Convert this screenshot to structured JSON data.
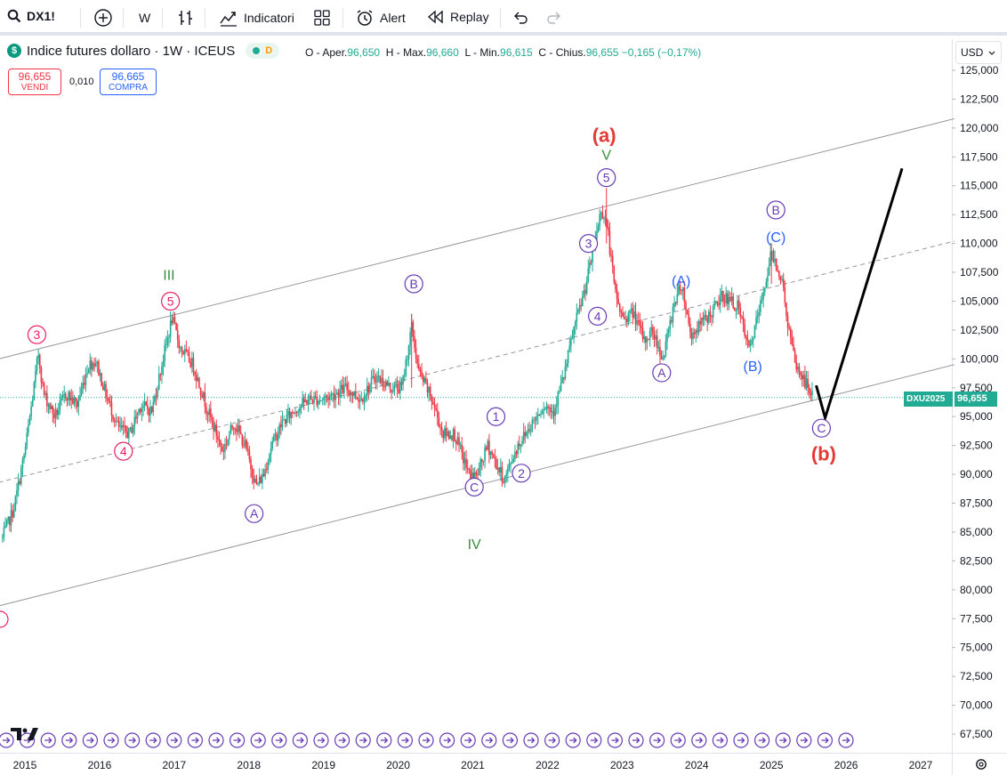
{
  "toolbar": {
    "symbol": "DX1!",
    "interval": "W",
    "indicators_label": "Indicatori",
    "alert_label": "Alert",
    "replay_label": "Replay"
  },
  "legend": {
    "title": "Indice futures dollaro · 1W · ICEUS",
    "badge": "D",
    "open_label": "O - Aper.",
    "open": "96,650",
    "high_label": "H - Max.",
    "high": "96,660",
    "low_label": "L - Min.",
    "low": "96,615",
    "close_label": "C - Chius.",
    "close": "96,655",
    "change": "−0,165 (−0,17%)"
  },
  "trade": {
    "sell_price": "96,655",
    "sell_label": "VENDI",
    "spread": "0,010",
    "buy_price": "96,665",
    "buy_label": "COMPRA"
  },
  "currency": "USD",
  "price_tag": {
    "symbol": "DXU2025",
    "price": "96,655"
  },
  "colors": {
    "up": "#22ab94",
    "down": "#f23645",
    "pink": "#e91e63",
    "purple": "#673ab7",
    "blue": "#2962ff",
    "green": "#388e3c",
    "red": "#e53935"
  },
  "chart_data": {
    "type": "candlestick",
    "timeframe": "1W",
    "y_ticks": [
      "125,000",
      "122,500",
      "120,000",
      "117,500",
      "115,000",
      "112,500",
      "110,000",
      "107,500",
      "105,000",
      "102,500",
      "100,000",
      "97,500",
      "95,000",
      "92,500",
      "90,000",
      "87,500",
      "85,000",
      "82,500",
      "80,000",
      "77,500",
      "75,000",
      "72,500",
      "70,000",
      "67,500"
    ],
    "x_ticks": [
      "2015",
      "2016",
      "2017",
      "2018",
      "2019",
      "2020",
      "2021",
      "2022",
      "2023",
      "2024",
      "2025",
      "2026",
      "2027"
    ],
    "ylim": [
      66,
      126
    ],
    "price_path": [
      [
        2014.7,
        84.5
      ],
      [
        2014.85,
        87
      ],
      [
        2015.0,
        92
      ],
      [
        2015.1,
        96.5
      ],
      [
        2015.18,
        100.5
      ],
      [
        2015.25,
        97
      ],
      [
        2015.4,
        95
      ],
      [
        2015.55,
        97
      ],
      [
        2015.7,
        96
      ],
      [
        2015.85,
        99.5
      ],
      [
        2015.95,
        99.8
      ],
      [
        2016.08,
        97
      ],
      [
        2016.25,
        94
      ],
      [
        2016.4,
        93.5
      ],
      [
        2016.55,
        96
      ],
      [
        2016.7,
        95.5
      ],
      [
        2016.85,
        100
      ],
      [
        2016.97,
        103.5
      ],
      [
        2017.08,
        101
      ],
      [
        2017.25,
        99.5
      ],
      [
        2017.45,
        95.5
      ],
      [
        2017.65,
        92
      ],
      [
        2017.8,
        94.5
      ],
      [
        2017.95,
        92.5
      ],
      [
        2018.1,
        89
      ],
      [
        2018.2,
        90
      ],
      [
        2018.3,
        92.5
      ],
      [
        2018.45,
        94.5
      ],
      [
        2018.6,
        95.5
      ],
      [
        2018.8,
        96.5
      ],
      [
        2018.95,
        96.5
      ],
      [
        2019.1,
        96.8
      ],
      [
        2019.3,
        97.5
      ],
      [
        2019.5,
        96.5
      ],
      [
        2019.7,
        98.5
      ],
      [
        2019.9,
        97.5
      ],
      [
        2020.05,
        97.5
      ],
      [
        2020.18,
        102.8
      ],
      [
        2020.27,
        99
      ],
      [
        2020.45,
        96.5
      ],
      [
        2020.6,
        93.5
      ],
      [
        2020.75,
        93.5
      ],
      [
        2020.95,
        90
      ],
      [
        2021.05,
        89.8
      ],
      [
        2021.2,
        92.5
      ],
      [
        2021.32,
        90.8
      ],
      [
        2021.42,
        89.5
      ],
      [
        2021.6,
        92.5
      ],
      [
        2021.8,
        94.5
      ],
      [
        2021.95,
        96
      ],
      [
        2022.08,
        95.5
      ],
      [
        2022.22,
        98.5
      ],
      [
        2022.35,
        102.5
      ],
      [
        2022.5,
        106
      ],
      [
        2022.6,
        109
      ],
      [
        2022.72,
        113
      ],
      [
        2022.8,
        111.5
      ],
      [
        2022.9,
        106
      ],
      [
        2023.0,
        103.5
      ],
      [
        2023.15,
        104
      ],
      [
        2023.3,
        101.5
      ],
      [
        2023.4,
        102.5
      ],
      [
        2023.55,
        100
      ],
      [
        2023.7,
        105
      ],
      [
        2023.8,
        106.5
      ],
      [
        2023.92,
        102
      ],
      [
        2024.05,
        103
      ],
      [
        2024.2,
        104
      ],
      [
        2024.35,
        105.5
      ],
      [
        2024.55,
        104.5
      ],
      [
        2024.7,
        100.7
      ],
      [
        2024.85,
        104.5
      ],
      [
        2025.0,
        109.2
      ],
      [
        2025.08,
        108
      ],
      [
        2025.15,
        106.5
      ],
      [
        2025.22,
        103
      ],
      [
        2025.32,
        99.5
      ],
      [
        2025.45,
        98
      ],
      [
        2025.55,
        96.7
      ]
    ],
    "channel_upper": [
      [
        2014.65,
        100
      ],
      [
        2027.45,
        120.8
      ]
    ],
    "channel_mid": [
      [
        2014.65,
        89.3
      ],
      [
        2027.45,
        110.2
      ]
    ],
    "channel_lower": [
      [
        2014.65,
        78.6
      ],
      [
        2027.45,
        99.5
      ]
    ],
    "projection": [
      [
        2025.6,
        97.7
      ],
      [
        2025.72,
        94.9
      ],
      [
        2026.75,
        116.5
      ]
    ],
    "wave_labels": [
      {
        "text": "3",
        "x": 2015.16,
        "y": 102.1,
        "style": "circle",
        "color": "#e91e63"
      },
      {
        "text": "4",
        "x": 2016.32,
        "y": 92.0,
        "style": "circle",
        "color": "#e91e63"
      },
      {
        "text": "5",
        "x": 2016.95,
        "y": 105.0,
        "style": "circle",
        "color": "#e91e63"
      },
      {
        "text": "III",
        "x": 2016.93,
        "y": 107.3,
        "style": "text",
        "color": "#388e3c"
      },
      {
        "text": "A",
        "x": 2018.07,
        "y": 86.6,
        "style": "circle",
        "color": "#673ab7"
      },
      {
        "text": "B",
        "x": 2020.21,
        "y": 106.5,
        "style": "circle",
        "color": "#673ab7"
      },
      {
        "text": "1",
        "x": 2021.31,
        "y": 95.0,
        "style": "circle",
        "color": "#673ab7"
      },
      {
        "text": "2",
        "x": 2021.65,
        "y": 90.1,
        "style": "circle",
        "color": "#673ab7"
      },
      {
        "text": "C",
        "x": 2021.02,
        "y": 88.9,
        "style": "circle",
        "color": "#673ab7"
      },
      {
        "text": "IV",
        "x": 2021.02,
        "y": 84.0,
        "style": "text",
        "color": "#388e3c"
      },
      {
        "text": "3",
        "x": 2022.55,
        "y": 110.0,
        "style": "circle",
        "color": "#673ab7"
      },
      {
        "text": "4",
        "x": 2022.67,
        "y": 103.7,
        "style": "circle",
        "color": "#673ab7"
      },
      {
        "text": "5",
        "x": 2022.79,
        "y": 115.7,
        "style": "circle",
        "color": "#673ab7"
      },
      {
        "text": "V",
        "x": 2022.79,
        "y": 117.7,
        "style": "text",
        "color": "#388e3c"
      },
      {
        "text": "(a)",
        "x": 2022.76,
        "y": 119.4,
        "style": "bold",
        "color": "#e53935"
      },
      {
        "text": "A",
        "x": 2023.53,
        "y": 98.8,
        "style": "circle",
        "color": "#673ab7"
      },
      {
        "text": "(A)",
        "x": 2023.79,
        "y": 106.8,
        "style": "text",
        "color": "#2962ff"
      },
      {
        "text": "(B)",
        "x": 2024.75,
        "y": 99.4,
        "style": "text",
        "color": "#2962ff"
      },
      {
        "text": "B",
        "x": 2025.06,
        "y": 112.9,
        "style": "circle",
        "color": "#673ab7"
      },
      {
        "text": "(C)",
        "x": 2025.06,
        "y": 110.6,
        "style": "text",
        "color": "#2962ff"
      },
      {
        "text": "C",
        "x": 2025.67,
        "y": 94.0,
        "style": "circle",
        "color": "#673ab7"
      },
      {
        "text": "(b)",
        "x": 2025.7,
        "y": 91.8,
        "style": "bold",
        "color": "#e53935"
      }
    ]
  }
}
